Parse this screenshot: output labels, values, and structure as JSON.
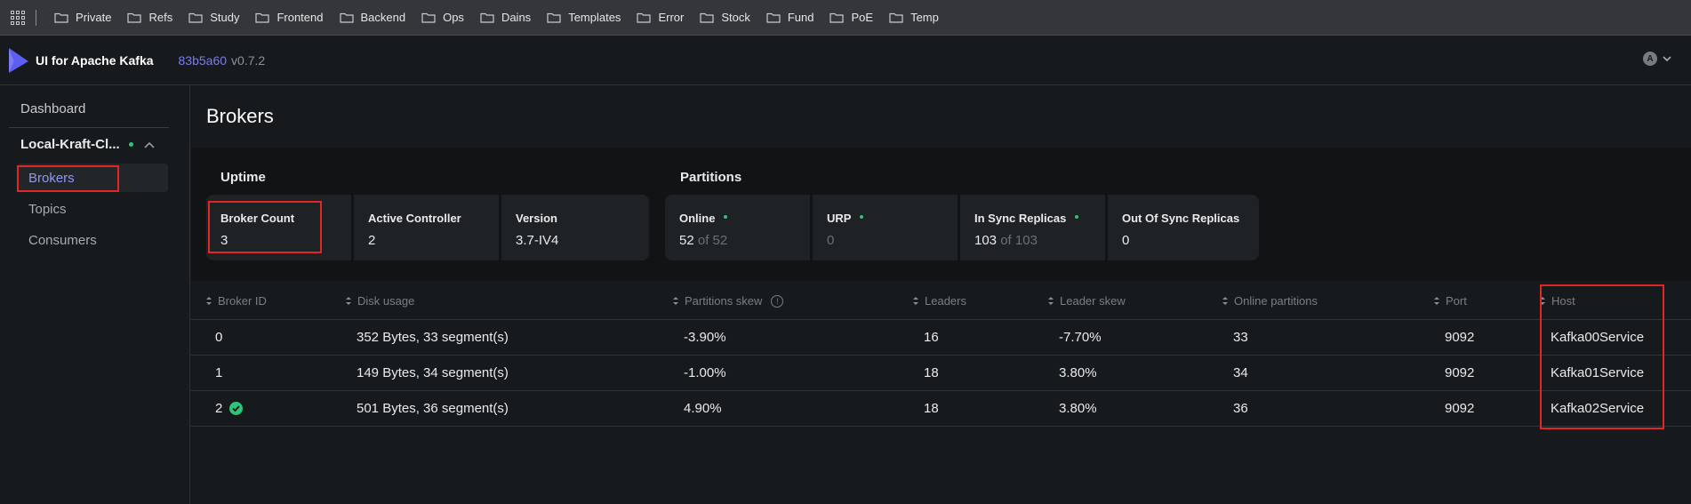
{
  "bookmarks": [
    "Private",
    "Refs",
    "Study",
    "Frontend",
    "Backend",
    "Ops",
    "Dains",
    "Templates",
    "Error",
    "Stock",
    "Fund",
    "PoE",
    "Temp"
  ],
  "header": {
    "app_title": "UI for Apache Kafka",
    "version_hash": "83b5a60",
    "version_number": "v0.7.2",
    "avatar_letter": "A"
  },
  "sidebar": {
    "dashboard": "Dashboard",
    "cluster_name": "Local-Kraft-Cl...",
    "items": [
      "Brokers",
      "Topics",
      "Consumers"
    ]
  },
  "page": {
    "title": "Brokers",
    "uptime_label": "Uptime",
    "partitions_label": "Partitions"
  },
  "uptime_cards": [
    {
      "title": "Broker Count",
      "value": "3"
    },
    {
      "title": "Active Controller",
      "value": "2"
    },
    {
      "title": "Version",
      "value": "3.7-IV4"
    }
  ],
  "partition_cards": [
    {
      "title": "Online",
      "value": "52",
      "suffix": "of 52"
    },
    {
      "title": "URP",
      "value": "0"
    },
    {
      "title": "In Sync Replicas",
      "value": "103",
      "suffix": "of 103"
    },
    {
      "title": "Out Of Sync Replicas",
      "value": "0"
    }
  ],
  "table": {
    "columns": [
      "Broker ID",
      "Disk usage",
      "Partitions skew",
      "Leaders",
      "Leader skew",
      "Online partitions",
      "Port",
      "Host"
    ],
    "rows": [
      [
        "0",
        "352 Bytes, 33 segment(s)",
        "-3.90%",
        "16",
        "-7.70%",
        "33",
        "9092",
        "Kafka00Service"
      ],
      [
        "1",
        "149 Bytes, 34 segment(s)",
        "-1.00%",
        "18",
        "3.80%",
        "34",
        "9092",
        "Kafka01Service"
      ],
      [
        "2",
        "501 Bytes, 36 segment(s)",
        "4.90%",
        "18",
        "3.80%",
        "36",
        "9092",
        "Kafka02Service"
      ]
    ]
  },
  "colors": {
    "accent": "#7b7cf0",
    "online_green": "#2ec47a",
    "highlight_red": "#e02626"
  }
}
